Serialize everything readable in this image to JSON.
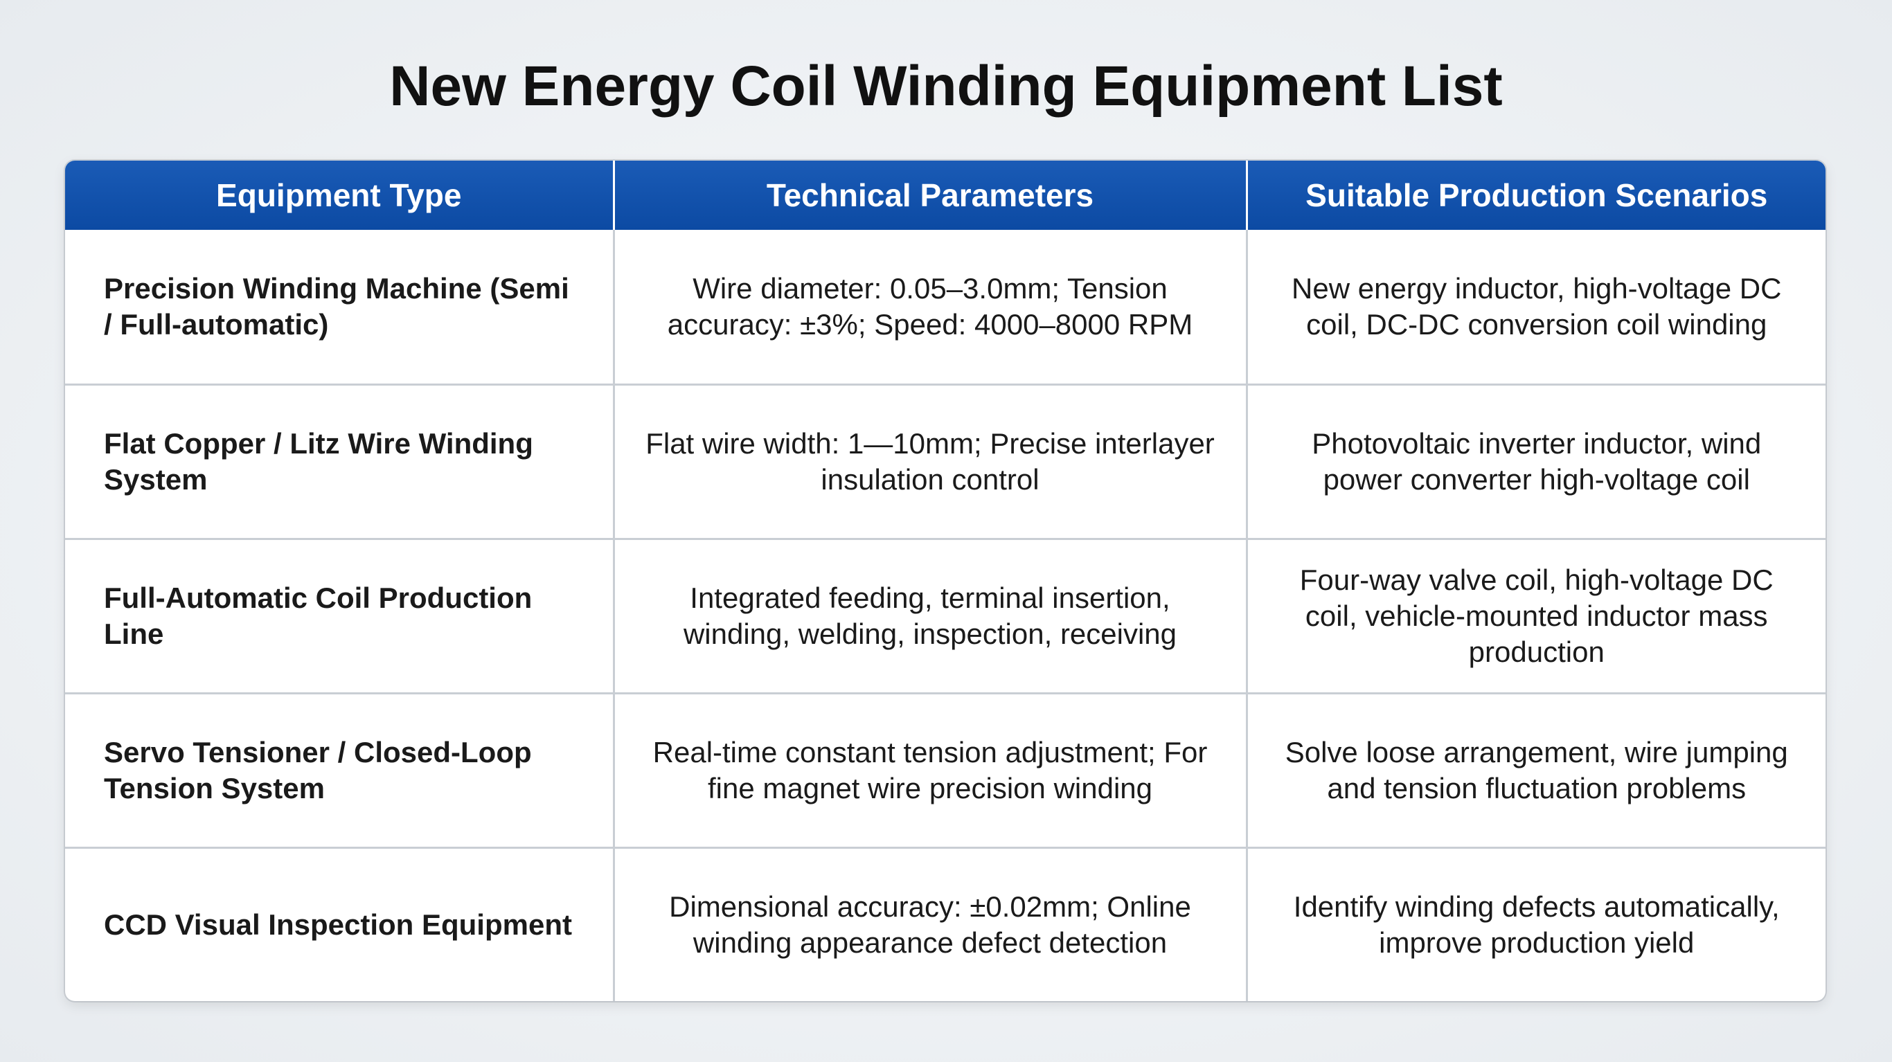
{
  "title": "New Energy Coil Winding Equipment List",
  "table": {
    "headers": [
      "Equipment Type",
      "Technical Parameters",
      "Suitable Production Scenarios"
    ],
    "rows": [
      {
        "type": "Precision Winding Machine (Semi / Full-automatic)",
        "params": "Wire diameter: 0.05–3.0mm; Tension accuracy: ±3%; Speed: 4000–8000 RPM",
        "scenarios": "New energy inductor, high-voltage DC coil, DC-DC conversion coil winding"
      },
      {
        "type": "Flat Copper / Litz Wire Winding System",
        "params": "Flat wire width: 1—10mm; Precise interlayer insulation control",
        "scenarios": "Photovoltaic inverter inductor, wind power converter high-voltage coil"
      },
      {
        "type": "Full-Automatic Coil Production Line",
        "params": "Integrated feeding, terminal insertion, winding, welding, inspection, receiving",
        "scenarios": "Four-way valve coil, high-voltage DC coil, vehicle-mounted inductor mass production"
      },
      {
        "type": "Servo Tensioner / Closed-Loop Tension System",
        "params": "Real-time constant tension adjustment; For fine magnet wire precision winding",
        "scenarios": "Solve loose arrangement, wire jumping and tension fluctuation problems"
      },
      {
        "type": "CCD Visual Inspection Equipment",
        "params": "Dimensional accuracy: ±0.02mm; Online winding appearance defect detection",
        "scenarios": "Identify winding defects automatically, improve production yield"
      }
    ]
  },
  "colors": {
    "header_blue": "#0c4aa3",
    "border": "#c9ced4"
  }
}
